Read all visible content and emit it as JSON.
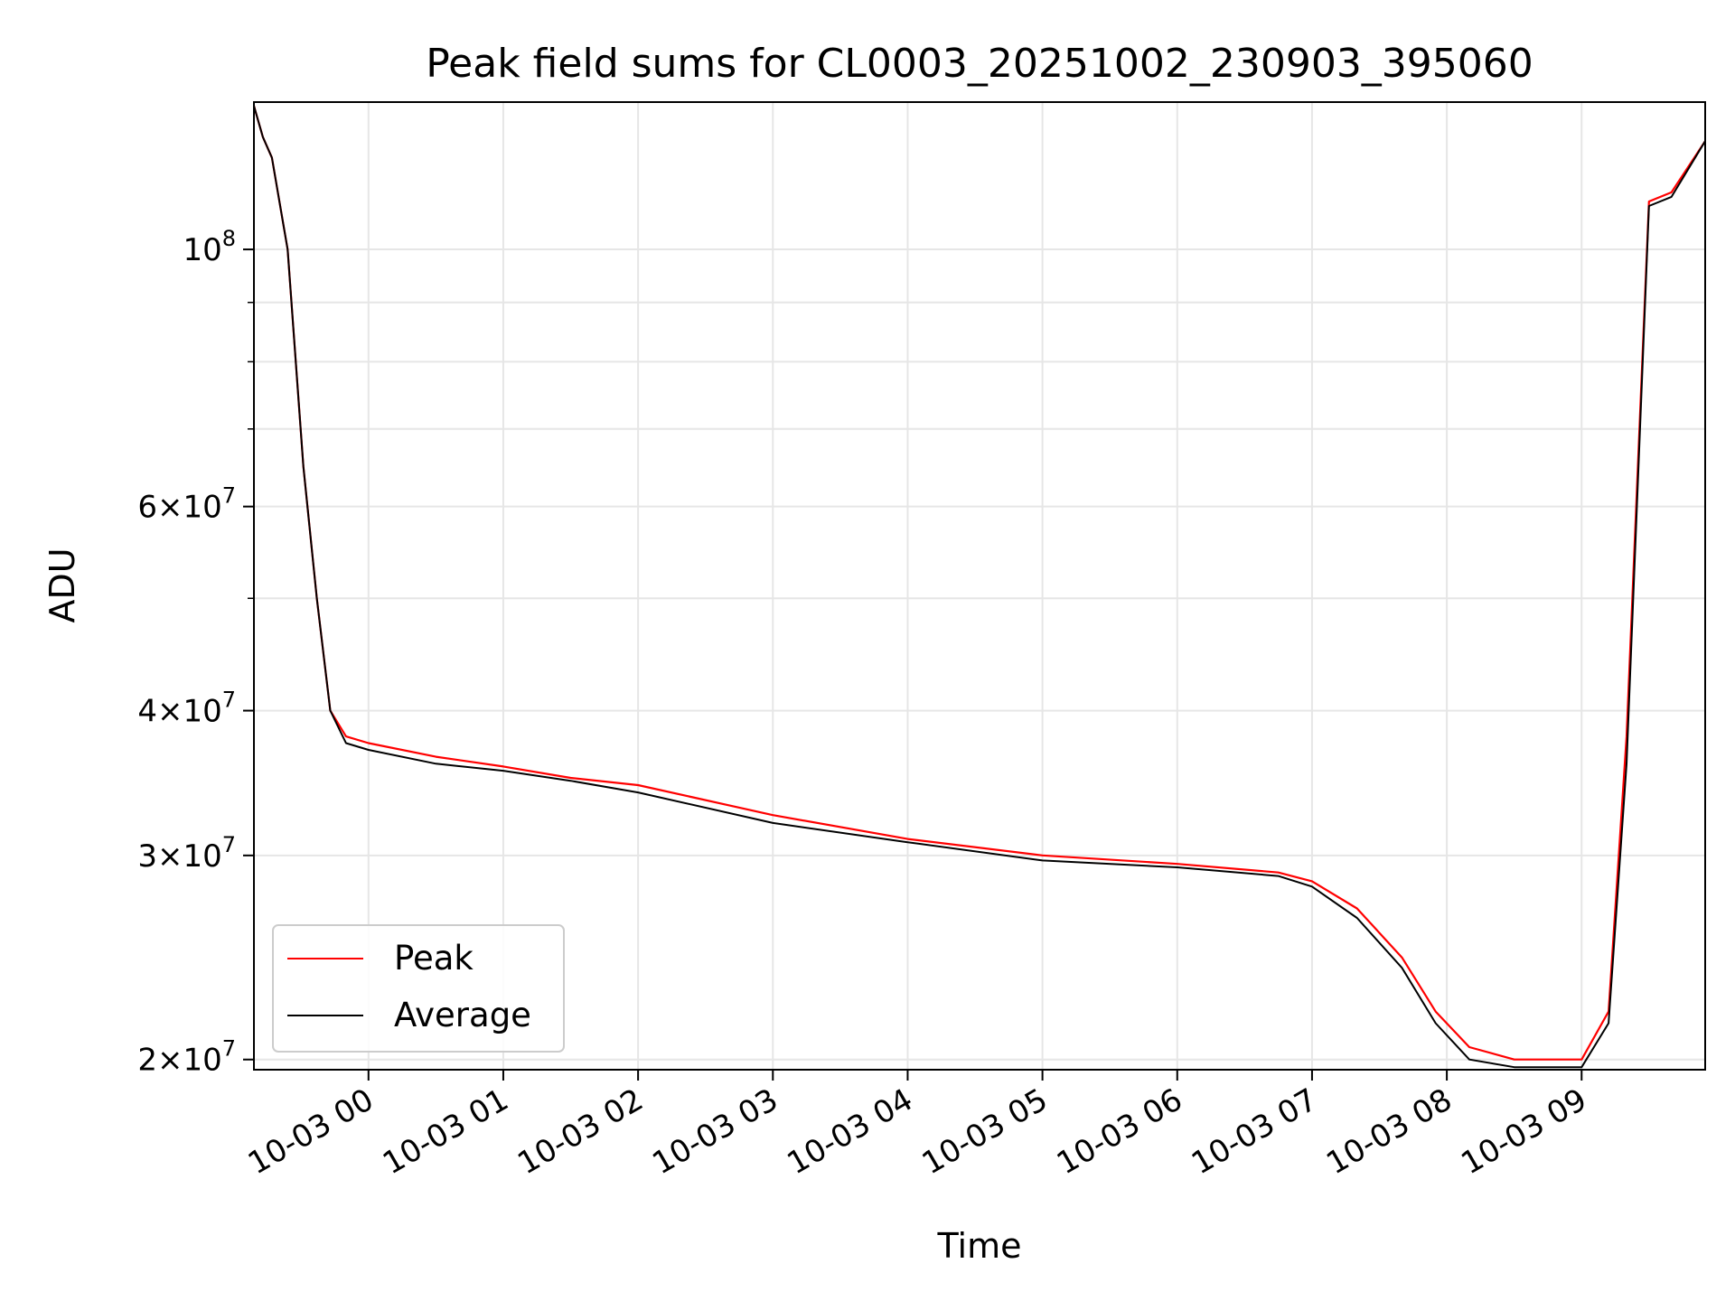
{
  "chart_data": {
    "type": "line",
    "title": "Peak field sums for CL0003_20251002_230903_395060",
    "xlabel": "Time",
    "ylabel": "ADU",
    "y_scale": "log",
    "xlim": [
      "2025-10-02 23:09",
      "2025-10-03 09:55"
    ],
    "ylim": [
      19600000,
      134000000
    ],
    "grid": true,
    "legend_position": "lower-left",
    "x_ticks": [
      {
        "time": "2025-10-03 00:00",
        "label": "10-03 00"
      },
      {
        "time": "2025-10-03 01:00",
        "label": "10-03 01"
      },
      {
        "time": "2025-10-03 02:00",
        "label": "10-03 02"
      },
      {
        "time": "2025-10-03 03:00",
        "label": "10-03 03"
      },
      {
        "time": "2025-10-03 04:00",
        "label": "10-03 04"
      },
      {
        "time": "2025-10-03 05:00",
        "label": "10-03 05"
      },
      {
        "time": "2025-10-03 06:00",
        "label": "10-03 06"
      },
      {
        "time": "2025-10-03 07:00",
        "label": "10-03 07"
      },
      {
        "time": "2025-10-03 08:00",
        "label": "10-03 08"
      },
      {
        "time": "2025-10-03 09:00",
        "label": "10-03 09"
      }
    ],
    "y_ticks": [
      {
        "value": 20000000,
        "mantissa": "2",
        "exp": "7"
      },
      {
        "value": 30000000,
        "mantissa": "3",
        "exp": "7"
      },
      {
        "value": 40000000,
        "mantissa": "4",
        "exp": "7"
      },
      {
        "value": 60000000,
        "mantissa": "6",
        "exp": "7"
      },
      {
        "value": 100000000,
        "mantissa": "",
        "exp": "8"
      }
    ],
    "y_minor_ticks": [
      50000000,
      70000000,
      80000000,
      90000000
    ],
    "series": [
      {
        "name": "Peak",
        "color": "#ff0000",
        "points": [
          [
            "2025-10-02 23:09",
            133000000
          ],
          [
            "2025-10-02 23:13",
            125000000
          ],
          [
            "2025-10-02 23:17",
            120000000
          ],
          [
            "2025-10-02 23:24",
            100000000
          ],
          [
            "2025-10-02 23:31",
            65000000
          ],
          [
            "2025-10-02 23:37",
            50000000
          ],
          [
            "2025-10-02 23:43",
            40000000
          ],
          [
            "2025-10-02 23:50",
            38000000
          ],
          [
            "2025-10-03 00:00",
            37500000
          ],
          [
            "2025-10-03 00:30",
            36500000
          ],
          [
            "2025-10-03 01:00",
            35800000
          ],
          [
            "2025-10-03 01:30",
            35000000
          ],
          [
            "2025-10-03 02:00",
            34500000
          ],
          [
            "2025-10-03 03:00",
            32500000
          ],
          [
            "2025-10-03 04:00",
            31000000
          ],
          [
            "2025-10-03 05:00",
            30000000
          ],
          [
            "2025-10-03 06:00",
            29500000
          ],
          [
            "2025-10-03 06:45",
            29000000
          ],
          [
            "2025-10-03 07:00",
            28500000
          ],
          [
            "2025-10-03 07:20",
            27000000
          ],
          [
            "2025-10-03 07:40",
            24500000
          ],
          [
            "2025-10-03 07:55",
            22000000
          ],
          [
            "2025-10-03 08:10",
            20500000
          ],
          [
            "2025-10-03 08:30",
            20000000
          ],
          [
            "2025-10-03 09:00",
            20000000
          ],
          [
            "2025-10-03 09:12",
            22000000
          ],
          [
            "2025-10-03 09:20",
            38000000
          ],
          [
            "2025-10-03 09:30",
            110000000
          ],
          [
            "2025-10-03 09:40",
            112000000
          ],
          [
            "2025-10-03 09:55",
            124000000
          ]
        ]
      },
      {
        "name": "Average",
        "color": "#000000",
        "points": [
          [
            "2025-10-02 23:09",
            133000000
          ],
          [
            "2025-10-02 23:13",
            125000000
          ],
          [
            "2025-10-02 23:17",
            120000000
          ],
          [
            "2025-10-02 23:24",
            100000000
          ],
          [
            "2025-10-02 23:31",
            65000000
          ],
          [
            "2025-10-02 23:37",
            50000000
          ],
          [
            "2025-10-02 23:43",
            40000000
          ],
          [
            "2025-10-02 23:50",
            37500000
          ],
          [
            "2025-10-03 00:00",
            37000000
          ],
          [
            "2025-10-03 00:30",
            36000000
          ],
          [
            "2025-10-03 01:00",
            35500000
          ],
          [
            "2025-10-03 01:30",
            34800000
          ],
          [
            "2025-10-03 02:00",
            34000000
          ],
          [
            "2025-10-03 03:00",
            32000000
          ],
          [
            "2025-10-03 04:00",
            30800000
          ],
          [
            "2025-10-03 05:00",
            29700000
          ],
          [
            "2025-10-03 06:00",
            29300000
          ],
          [
            "2025-10-03 06:45",
            28800000
          ],
          [
            "2025-10-03 07:00",
            28200000
          ],
          [
            "2025-10-03 07:20",
            26500000
          ],
          [
            "2025-10-03 07:40",
            24000000
          ],
          [
            "2025-10-03 07:55",
            21500000
          ],
          [
            "2025-10-03 08:10",
            20000000
          ],
          [
            "2025-10-03 08:30",
            19700000
          ],
          [
            "2025-10-03 09:00",
            19700000
          ],
          [
            "2025-10-03 09:12",
            21500000
          ],
          [
            "2025-10-03 09:20",
            36000000
          ],
          [
            "2025-10-03 09:30",
            109000000
          ],
          [
            "2025-10-03 09:40",
            111000000
          ],
          [
            "2025-10-03 09:55",
            124000000
          ]
        ]
      }
    ]
  }
}
